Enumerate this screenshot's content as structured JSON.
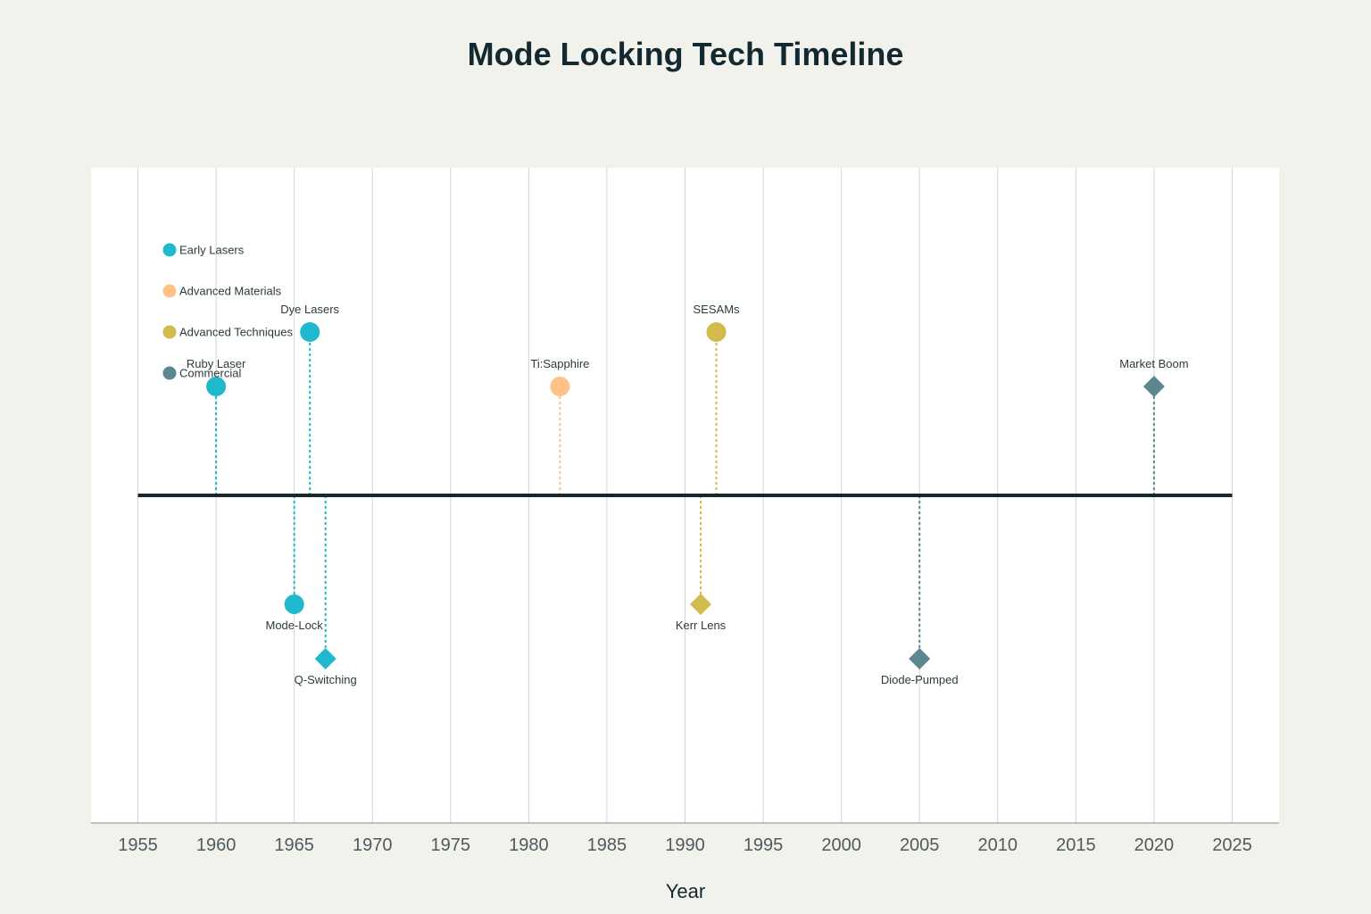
{
  "chart_data": {
    "type": "scatter",
    "title": "Mode Locking Tech Timeline",
    "xlabel": "Year",
    "ylabel": "",
    "xlim": [
      1952,
      2028
    ],
    "x_ticks": [
      1955,
      1960,
      1965,
      1970,
      1975,
      1980,
      1985,
      1990,
      1995,
      2000,
      2005,
      2010,
      2015,
      2020,
      2025
    ],
    "grid": "vertical",
    "legend": "top-left",
    "categories": [
      {
        "name": "Early Lasers",
        "color": "#1fb8cd"
      },
      {
        "name": "Advanced Materials",
        "color": "#ffc185"
      },
      {
        "name": "Advanced Techniques",
        "color": "#d2ba4c"
      },
      {
        "name": "Commercial",
        "color": "#5d878f"
      }
    ],
    "events": [
      {
        "label": "Ruby Laser",
        "year": 1960,
        "level": 2,
        "category": "Early Lasers",
        "marker": "circle"
      },
      {
        "label": "Mode-Lock",
        "year": 1965,
        "level": -2,
        "category": "Early Lasers",
        "marker": "circle"
      },
      {
        "label": "Dye Lasers",
        "year": 1966,
        "level": 3,
        "category": "Early Lasers",
        "marker": "circle"
      },
      {
        "label": "Q-Switching",
        "year": 1967,
        "level": -3,
        "category": "Early Lasers",
        "marker": "diamond"
      },
      {
        "label": "Ti:Sapphire",
        "year": 1982,
        "level": 2,
        "category": "Advanced Materials",
        "marker": "circle"
      },
      {
        "label": "Kerr Lens",
        "year": 1991,
        "level": -2,
        "category": "Advanced Techniques",
        "marker": "diamond"
      },
      {
        "label": "SESAMs",
        "year": 1992,
        "level": 3,
        "category": "Advanced Techniques",
        "marker": "circle"
      },
      {
        "label": "Diode-Pumped",
        "year": 2005,
        "level": -3,
        "category": "Commercial",
        "marker": "diamond"
      },
      {
        "label": "Market Boom",
        "year": 2020,
        "level": 2,
        "category": "Commercial",
        "marker": "diamond"
      }
    ]
  }
}
